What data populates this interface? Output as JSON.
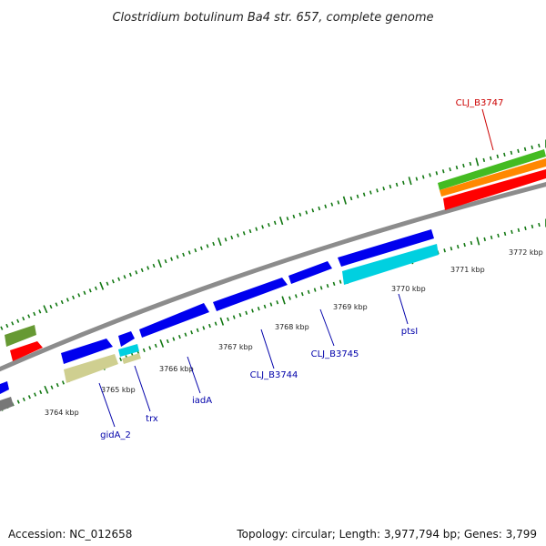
{
  "title": "Clostridium botulinum Ba4 str. 657, complete genome",
  "ticks": [
    "3764 kbp",
    "3765 kbp",
    "3766 kbp",
    "3767 kbp",
    "3768 kbp",
    "3769 kbp",
    "3770 kbp",
    "3771 kbp",
    "3772 kbp"
  ],
  "genes": [
    {
      "name": "CLJ_B3747",
      "color": "#cc0000"
    },
    {
      "name": "CLJ_B3745",
      "color": "#0000aa"
    },
    {
      "name": "CLJ_B3744",
      "color": "#0000aa"
    },
    {
      "name": "ptsI",
      "color": "#0000aa"
    },
    {
      "name": "iadA",
      "color": "#0000aa"
    },
    {
      "name": "trx",
      "color": "#0000aa"
    },
    {
      "name": "gidA_2",
      "color": "#0000aa"
    }
  ],
  "footer": {
    "accession": "Accession: NC_012658",
    "topology": "Topology: circular; Length: 3,977,794 bp; Genes: 3,799"
  },
  "colors": {
    "backbone": "#8c8c8c",
    "cds": "#0000ee",
    "trna": "#00d0e0",
    "gene_khaki": "#cfcf90",
    "rrna_red": "#ff0000",
    "green": "#44bb22",
    "orange": "#ff8800",
    "olive": "#669933",
    "tick": "#117711"
  }
}
